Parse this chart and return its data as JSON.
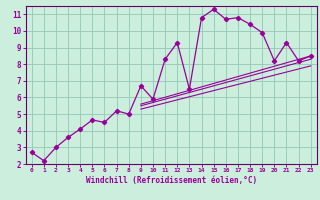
{
  "xlabel": "Windchill (Refroidissement éolien,°C)",
  "bg_color": "#cceedd",
  "grid_color": "#99ccbb",
  "line_color": "#990099",
  "spine_color": "#660066",
  "xlim": [
    -0.5,
    23.5
  ],
  "ylim": [
    2,
    11.5
  ],
  "xticks": [
    0,
    1,
    2,
    3,
    4,
    5,
    6,
    7,
    8,
    9,
    10,
    11,
    12,
    13,
    14,
    15,
    16,
    17,
    18,
    19,
    20,
    21,
    22,
    23
  ],
  "yticks": [
    2,
    3,
    4,
    5,
    6,
    7,
    8,
    9,
    10,
    11
  ],
  "series_markers": {
    "x": [
      0,
      1,
      2,
      3,
      4,
      5,
      6,
      7,
      8,
      9,
      10,
      11,
      12,
      13,
      14,
      15,
      16,
      17,
      18,
      19,
      20,
      21,
      22,
      23
    ],
    "y": [
      2.7,
      2.2,
      3.0,
      3.6,
      4.1,
      4.65,
      4.5,
      5.2,
      5.0,
      6.7,
      5.9,
      8.3,
      9.3,
      6.5,
      10.8,
      11.3,
      10.7,
      10.8,
      10.4,
      9.9,
      8.2,
      9.3,
      8.2,
      8.5
    ]
  },
  "trend_lines": [
    {
      "x": [
        9,
        23
      ],
      "y": [
        5.6,
        8.5
      ]
    },
    {
      "x": [
        9,
        23
      ],
      "y": [
        5.5,
        8.3
      ]
    },
    {
      "x": [
        9,
        23
      ],
      "y": [
        5.3,
        7.9
      ]
    }
  ]
}
